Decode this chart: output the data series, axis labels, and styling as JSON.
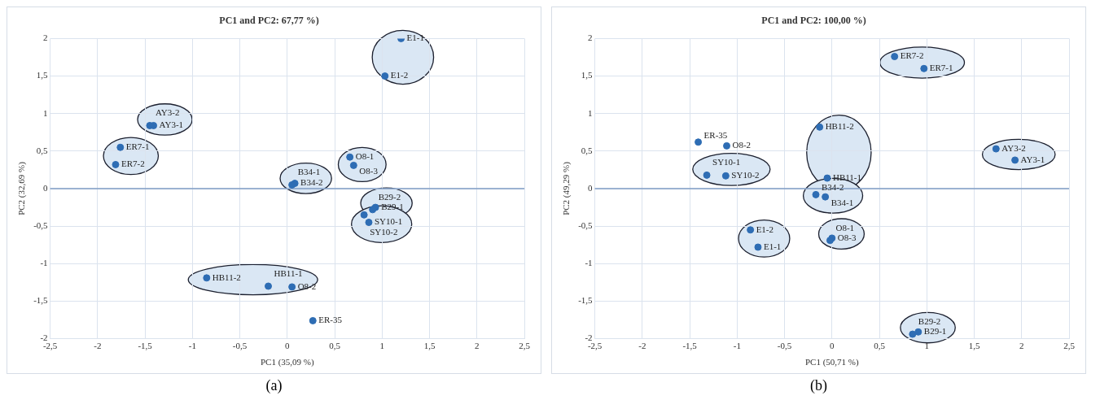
{
  "chart_data": [
    {
      "type": "scatter",
      "title": "PC1 and PC2: 67,77 %)",
      "xlabel": "PC1 (35,09 %)",
      "ylabel": "PC2 (32,69 %)",
      "xlim": [
        -2.5,
        2.5
      ],
      "xticks": [
        {
          "value": -2.5,
          "label": "-2,5"
        },
        -2,
        {
          "value": -1.5,
          "label": "-1,5"
        },
        -1,
        {
          "value": -0.5,
          "label": "-0,5"
        },
        0,
        {
          "value": 0.5,
          "label": "0,5"
        },
        1,
        {
          "value": 1.5,
          "label": "1,5"
        },
        2,
        {
          "value": 2.5,
          "label": "2,5"
        }
      ],
      "ylim": [
        -2,
        2
      ],
      "yticks": [
        -2,
        {
          "value": -1.5,
          "label": "-1,5"
        },
        -1,
        {
          "value": -0.5,
          "label": "-0,5"
        },
        0,
        {
          "value": 0.5,
          "label": "0,5"
        },
        1,
        {
          "value": 1.5,
          "label": "1,5"
        },
        2
      ],
      "grid": true,
      "marker": "circle",
      "annotations": [
        "(a)"
      ],
      "ref_lines": [
        {
          "axis": "y",
          "value": 0,
          "color": "#7f9cc4"
        }
      ],
      "series": [
        {
          "color": "#2e6db4",
          "x": [
            1.2,
            1.03
          ],
          "values": [
            2.0,
            1.5
          ],
          "value_labels": [
            "E1-1",
            "E1-2"
          ]
        },
        {
          "color": "#2e6db4",
          "x": [
            -1.45,
            -1.41
          ],
          "values": [
            0.84,
            0.84
          ],
          "value_labels": [
            "AY3-2",
            "AY3-1"
          ]
        },
        {
          "color": "#2e6db4",
          "x": [
            -1.76,
            -1.81
          ],
          "values": [
            0.55,
            0.32
          ],
          "value_labels": [
            "ER7-1",
            "ER7-2"
          ]
        },
        {
          "color": "#2e6db4",
          "x": [
            0.66,
            0.7
          ],
          "values": [
            0.42,
            0.31
          ],
          "value_labels": [
            "O8-1",
            "O8-3"
          ]
        },
        {
          "color": "#2e6db4",
          "x": [
            0.08,
            0.05
          ],
          "values": [
            0.07,
            0.05
          ],
          "value_labels": [
            "B34-2",
            "B34-1"
          ]
        },
        {
          "color": "#2e6db4",
          "x": [
            0.93,
            0.9
          ],
          "values": [
            -0.25,
            -0.28
          ],
          "value_labels": [
            "B29-1",
            "B29-2"
          ]
        },
        {
          "color": "#2e6db4",
          "x": [
            0.81,
            0.86
          ],
          "values": [
            -0.35,
            -0.45
          ],
          "value_labels": [
            "SY10-2",
            "SY10-1"
          ]
        },
        {
          "color": "#2e6db4",
          "x": [
            -0.85,
            -0.2
          ],
          "values": [
            -1.19,
            -1.3
          ],
          "value_labels": [
            "HB11-2",
            "HB11-1"
          ]
        },
        {
          "color": "#2e6db4",
          "x": [
            0.05
          ],
          "values": [
            -1.31
          ],
          "value_labels": [
            "O8-2"
          ]
        },
        {
          "color": "#2e6db4",
          "x": [
            0.27
          ],
          "values": [
            -1.76
          ],
          "value_labels": [
            "ER-35"
          ]
        }
      ]
    },
    {
      "type": "scatter",
      "title": "PC1 and PC2: 100,00 %)",
      "xlabel": "PC1 (50,71 %)",
      "ylabel": "PC2 (49,29 %)",
      "xlim": [
        -2.5,
        2.5
      ],
      "xticks": [
        {
          "value": -2.5,
          "label": "-2,5"
        },
        -2,
        {
          "value": -1.5,
          "label": "-1,5"
        },
        -1,
        {
          "value": -0.5,
          "label": "-0,5"
        },
        0,
        {
          "value": 0.5,
          "label": "0,5"
        },
        1,
        {
          "value": 1.5,
          "label": "1,5"
        },
        2,
        {
          "value": 2.5,
          "label": "2,5"
        }
      ],
      "ylim": [
        -2,
        2
      ],
      "yticks": [
        -2,
        {
          "value": -1.5,
          "label": "-1,5"
        },
        -1,
        {
          "value": -0.5,
          "label": "-0,5"
        },
        0,
        {
          "value": 0.5,
          "label": "0,5"
        },
        1,
        {
          "value": 1.5,
          "label": "1,5"
        },
        2
      ],
      "grid": true,
      "marker": "circle",
      "annotations": [
        "(b)"
      ],
      "ref_lines": [
        {
          "axis": "y",
          "value": 0,
          "color": "#7f9cc4"
        }
      ],
      "series": [
        {
          "color": "#2e6db4",
          "x": [
            -1.41
          ],
          "values": [
            0.62
          ],
          "value_labels": [
            "ER-35"
          ]
        },
        {
          "color": "#2e6db4",
          "x": [
            -1.11
          ],
          "values": [
            0.57
          ],
          "value_labels": [
            "O8-2"
          ]
        },
        {
          "color": "#2e6db4",
          "x": [
            -1.32,
            -1.12
          ],
          "values": [
            0.18,
            0.17
          ],
          "value_labels": [
            "SY10-1",
            "SY10-2"
          ]
        },
        {
          "color": "#2e6db4",
          "x": [
            -0.86,
            -0.78
          ],
          "values": [
            -0.55,
            -0.78
          ],
          "value_labels": [
            "E1-2",
            "E1-1"
          ]
        },
        {
          "color": "#2e6db4",
          "x": [
            -0.13,
            -0.05
          ],
          "values": [
            0.82,
            0.14
          ],
          "value_labels": [
            "HB11-2",
            "HB11-1"
          ]
        },
        {
          "color": "#2e6db4",
          "x": [
            -0.17,
            -0.07
          ],
          "values": [
            -0.08,
            -0.11
          ],
          "value_labels": [
            "B34-2",
            "B34-1"
          ]
        },
        {
          "color": "#2e6db4",
          "x": [
            0.0,
            -0.02
          ],
          "values": [
            -0.66,
            -0.69
          ],
          "value_labels": [
            "O8-3",
            "O8-1"
          ]
        },
        {
          "color": "#2e6db4",
          "x": [
            0.66,
            0.97
          ],
          "values": [
            1.76,
            1.6
          ],
          "value_labels": [
            "ER7-2",
            "ER7-1"
          ]
        },
        {
          "color": "#2e6db4",
          "x": [
            1.73,
            1.93
          ],
          "values": [
            0.53,
            0.38
          ],
          "value_labels": [
            "AY3-2",
            "AY3-1"
          ]
        },
        {
          "color": "#2e6db4",
          "x": [
            0.91,
            0.85
          ],
          "values": [
            -1.91,
            -1.94
          ],
          "value_labels": [
            "B29-1",
            "B29-2"
          ]
        }
      ]
    }
  ]
}
